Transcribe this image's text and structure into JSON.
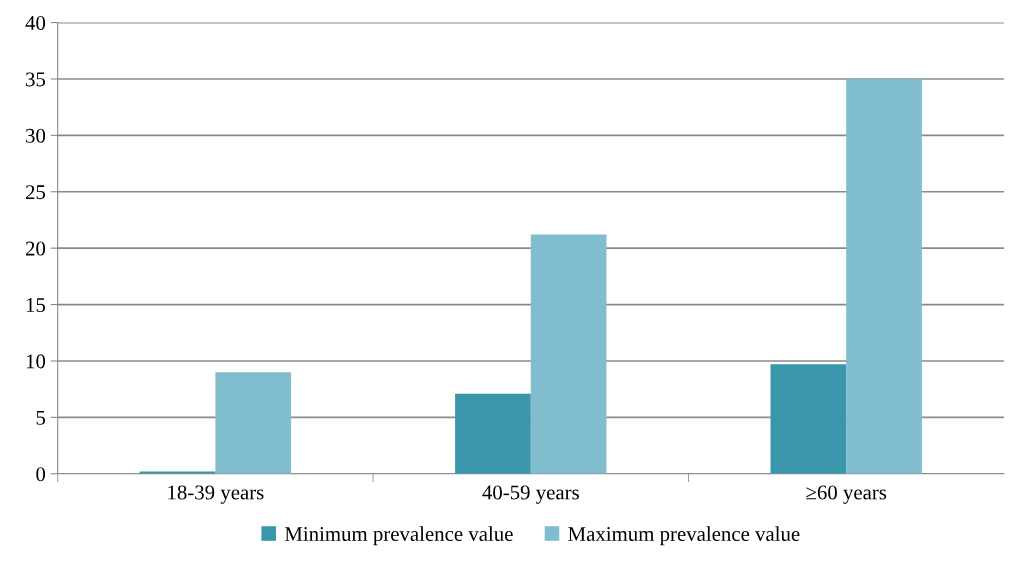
{
  "chart_data": {
    "type": "bar",
    "categories": [
      "18-39 years",
      "40-59 years",
      "≥60 years"
    ],
    "series": [
      {
        "name": "Minimum prevalence value",
        "color": "#3a96ab",
        "values": [
          0.2,
          7.1,
          9.7
        ]
      },
      {
        "name": "Maximum prevalence value",
        "color": "#80bdcf",
        "values": [
          9.0,
          21.2,
          35.0
        ]
      }
    ],
    "ylim": [
      0,
      40
    ],
    "yticks": [
      0,
      5,
      10,
      15,
      20,
      25,
      30,
      35,
      40
    ],
    "grid": "y",
    "legend": "bottom"
  }
}
